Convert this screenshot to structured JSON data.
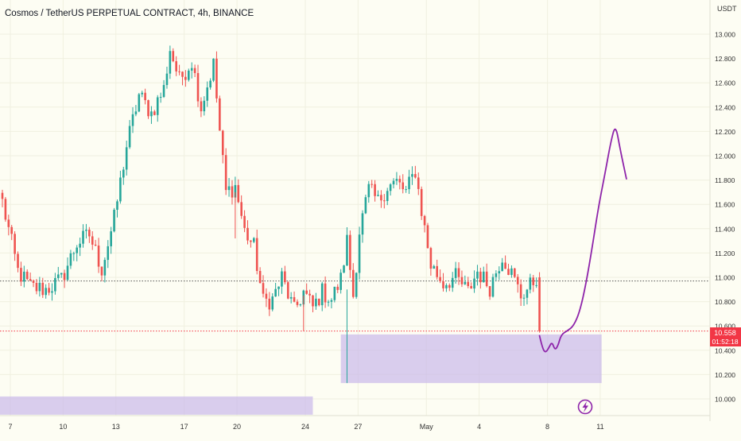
{
  "header": {
    "title": "Cosmos / TetherUS PERPETUAL CONTRACT, 4h, BINANCE",
    "currency": "USDT"
  },
  "price_badge": {
    "price": "10.558",
    "countdown": "01:52:18",
    "color": "#f23645"
  },
  "colors": {
    "background": "#fdfdf3",
    "up": "#26a69a",
    "down": "#ef5350",
    "drawing": "#8e24aa",
    "zone": "#c9b8ea",
    "grid": "#f0f0e0",
    "axis_text": "#333333"
  },
  "lightning_icon": "lightning-icon",
  "chart_data": {
    "type": "candlestick",
    "title": "Cosmos / TetherUS PERPETUAL CONTRACT, 4h, BINANCE",
    "xlabel": "",
    "ylabel": "USDT",
    "ylim": [
      9.85,
      13.15
    ],
    "y_ticks": [
      "13.000",
      "12.800",
      "12.600",
      "12.400",
      "12.200",
      "12.000",
      "11.800",
      "11.600",
      "11.400",
      "11.200",
      "11.000",
      "10.800",
      "10.600",
      "10.400",
      "10.200",
      "10.000"
    ],
    "x_ticks": [
      {
        "label": "7",
        "index": 0
      },
      {
        "label": "10",
        "index": 17
      },
      {
        "label": "13",
        "index": 34
      },
      {
        "label": "17",
        "index": 56
      },
      {
        "label": "20",
        "index": 73
      },
      {
        "label": "24",
        "index": 95
      },
      {
        "label": "27",
        "index": 112
      },
      {
        "label": "May",
        "index": 134
      },
      {
        "label": "4",
        "index": 151
      },
      {
        "label": "8",
        "index": 173
      },
      {
        "label": "11",
        "index": 190
      }
    ],
    "grid": true,
    "reference_lines": [
      {
        "name": "level-line",
        "value": 10.97,
        "color": "#555555"
      },
      {
        "name": "current-price-line",
        "value": 10.558,
        "color": "#f23645"
      }
    ],
    "zones": [
      {
        "name": "demand-zone",
        "from_index": 109,
        "to_index": 193,
        "low": 10.13,
        "high": 10.53
      },
      {
        "name": "lower-zone",
        "from_index": -1,
        "to_index": 100,
        "low": 9.87,
        "high": 10.02
      }
    ],
    "forecast_path": [
      [
        173.0,
        10.52
      ],
      [
        174.0,
        10.41
      ],
      [
        175.0,
        10.38
      ],
      [
        176.0,
        10.42
      ],
      [
        177.0,
        10.47
      ],
      [
        178.0,
        10.4
      ],
      [
        179.0,
        10.44
      ],
      [
        180.0,
        10.53
      ],
      [
        182.0,
        10.56
      ],
      [
        184.0,
        10.6
      ],
      [
        186.0,
        10.72
      ],
      [
        188.0,
        10.95
      ],
      [
        190.0,
        11.25
      ],
      [
        192.0,
        11.58
      ],
      [
        194.0,
        11.84
      ],
      [
        196.0,
        12.12
      ],
      [
        197.5,
        12.26
      ],
      [
        199.0,
        12.05
      ],
      [
        201.0,
        11.81
      ]
    ],
    "keypoints": [
      [
        0,
        11.62
      ],
      [
        5,
        11.05
      ],
      [
        9,
        10.92
      ],
      [
        14,
        10.9
      ],
      [
        19,
        10.98
      ],
      [
        24,
        11.28
      ],
      [
        28,
        11.35
      ],
      [
        32,
        11.07
      ],
      [
        36,
        11.48
      ],
      [
        40,
        12.08
      ],
      [
        44,
        12.5
      ],
      [
        48,
        12.35
      ],
      [
        52,
        12.55
      ],
      [
        54,
        12.88
      ],
      [
        57,
        12.62
      ],
      [
        61,
        12.78
      ],
      [
        64,
        12.4
      ],
      [
        68,
        12.75
      ],
      [
        70,
        12.2
      ],
      [
        72,
        11.7
      ],
      [
        75,
        11.75
      ],
      [
        78,
        11.38
      ],
      [
        81,
        11.25
      ],
      [
        84,
        10.8
      ],
      [
        87,
        10.82
      ],
      [
        90,
        11.0
      ],
      [
        94,
        10.72
      ],
      [
        97,
        10.88
      ],
      [
        100,
        10.75
      ],
      [
        103,
        10.88
      ],
      [
        106,
        10.82
      ],
      [
        109,
        10.98
      ],
      [
        111,
        11.3
      ],
      [
        113,
        10.85
      ],
      [
        115,
        11.38
      ],
      [
        118,
        11.72
      ],
      [
        121,
        11.62
      ],
      [
        124,
        11.75
      ],
      [
        127,
        11.78
      ],
      [
        130,
        11.7
      ],
      [
        133,
        11.88
      ],
      [
        135,
        11.55
      ],
      [
        138,
        11.1
      ],
      [
        142,
        10.95
      ],
      [
        146,
        11.0
      ],
      [
        150,
        10.88
      ],
      [
        153,
        11.05
      ],
      [
        157,
        10.92
      ],
      [
        161,
        11.18
      ],
      [
        164,
        11.03
      ],
      [
        167,
        10.85
      ],
      [
        170,
        10.93
      ],
      [
        172,
        11.0
      ]
    ],
    "candles": {
      "count": 174,
      "final_open": 11.0,
      "final_close": 10.558
    }
  }
}
